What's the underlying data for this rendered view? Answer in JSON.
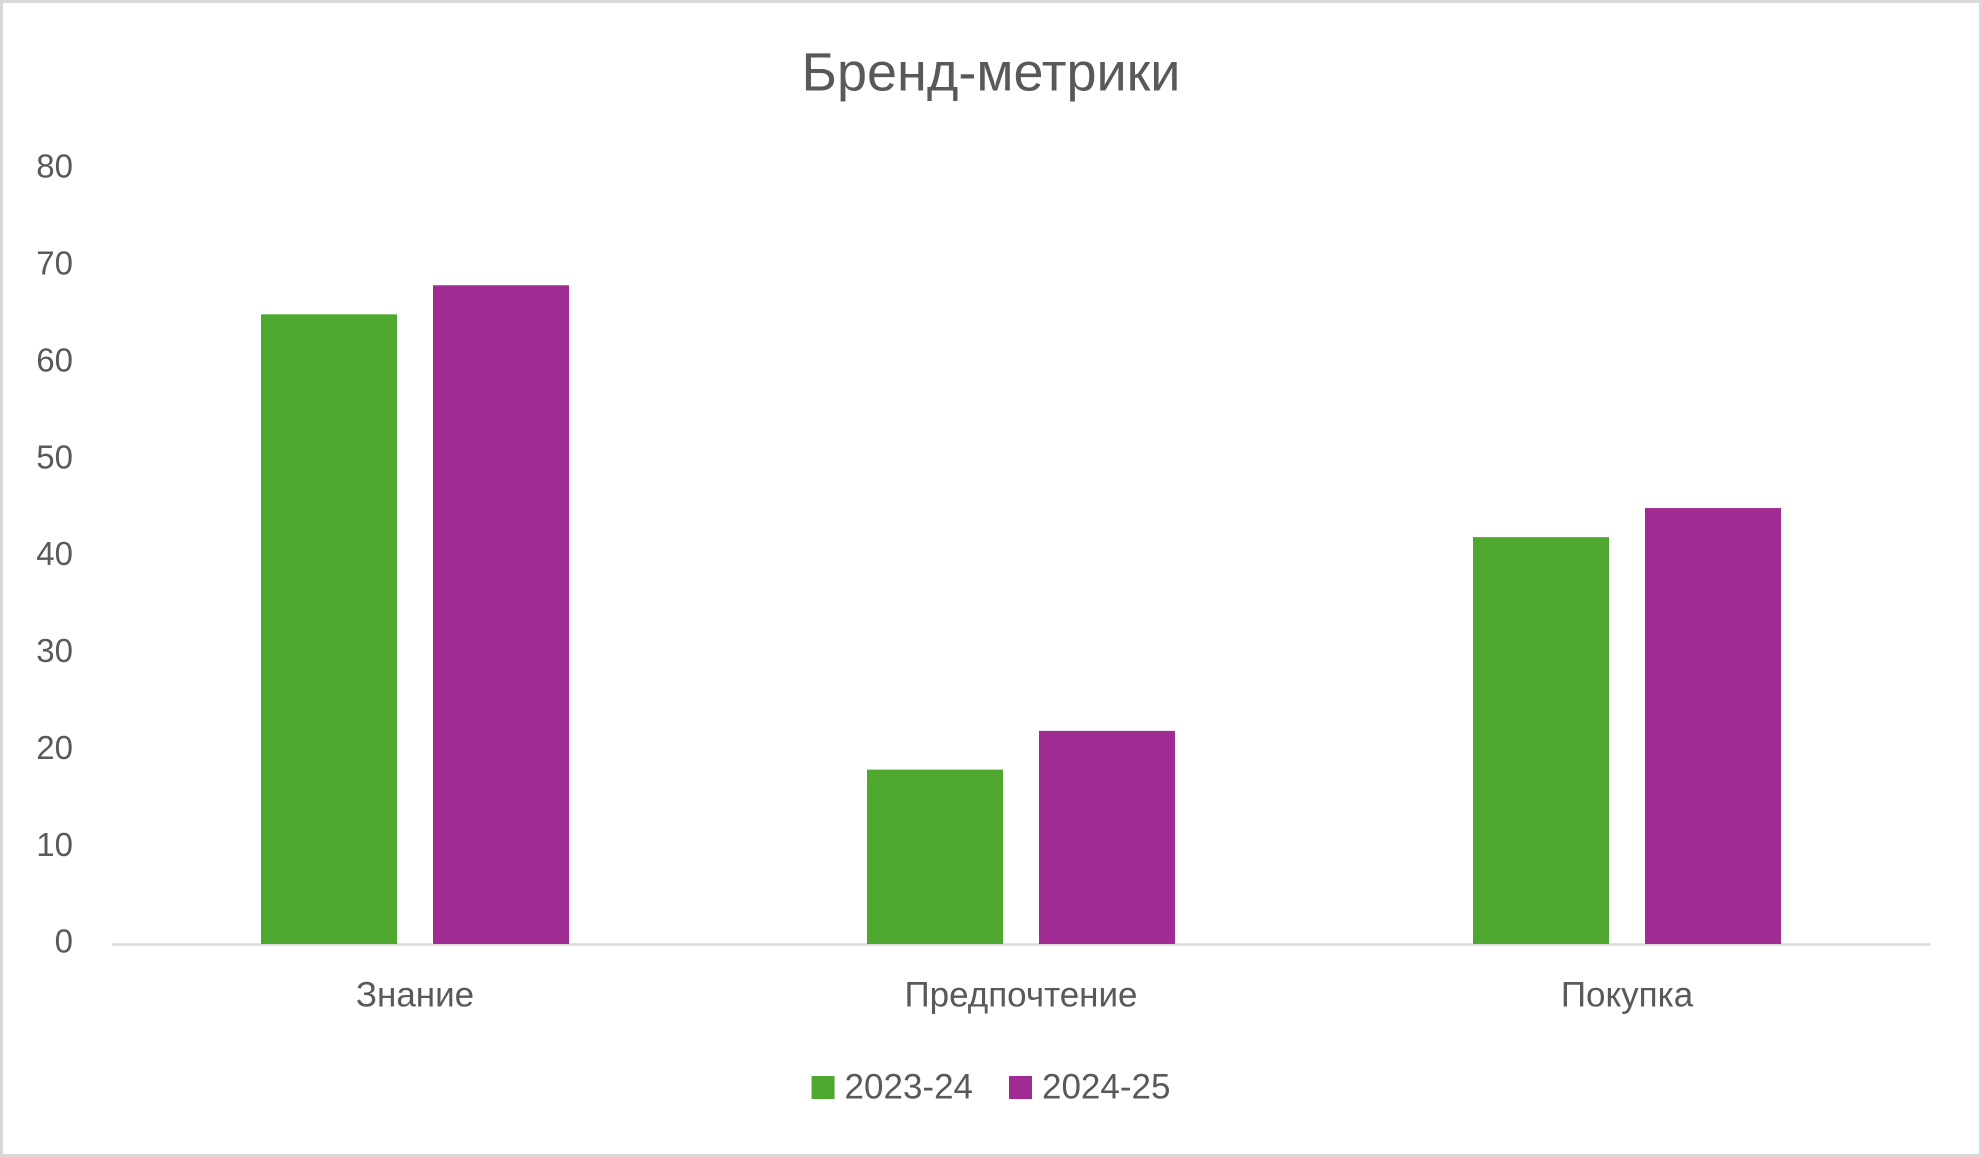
{
  "chart_data": {
    "type": "bar",
    "title": "Бренд-метрики",
    "categories": [
      "Знание",
      "Предпочтение",
      "Покупка"
    ],
    "series": [
      {
        "name": "2023-24",
        "color": "#4ea72e",
        "values": [
          65,
          18,
          42
        ]
      },
      {
        "name": "2024-25",
        "color": "#a02b93",
        "values": [
          68,
          22,
          45
        ]
      }
    ],
    "ylim": [
      0,
      80
    ],
    "yticks": [
      0,
      10,
      20,
      30,
      40,
      50,
      60,
      70,
      80
    ],
    "grid": false,
    "legend": "bottom"
  }
}
